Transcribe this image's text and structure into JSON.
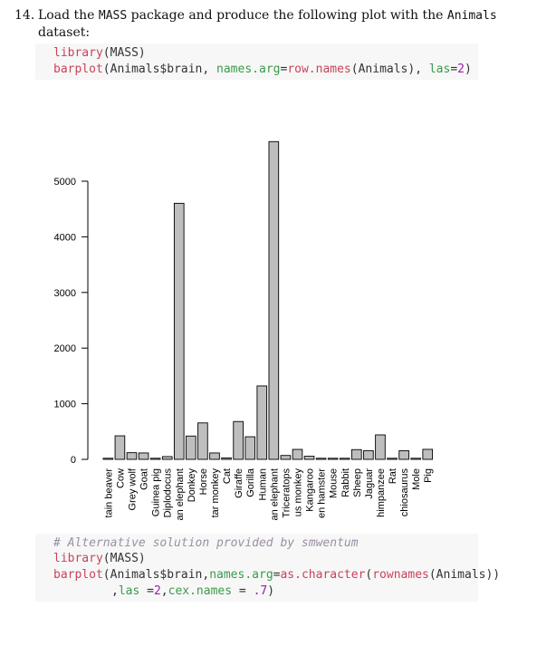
{
  "question": {
    "number": "14.",
    "text_pre": "Load the ",
    "text_mass": "MASS",
    "text_mid": " package and produce the following plot with the ",
    "text_animals": "Animals",
    "text_line2": "dataset:"
  },
  "code_block_1": {
    "line1": {
      "fn": "library",
      "rest": "(MASS)"
    },
    "line2": {
      "fn": "barplot",
      "p1": "(Animals$brain, ",
      "arg1": "names.arg",
      "eq1": "=",
      "fn2": "row.names",
      "p2": "(Animals), ",
      "arg2": "las",
      "eq2": "=",
      "num": "2",
      "close": ")"
    }
  },
  "code_block_2": {
    "comment": "# Alternative solution provided by smwentum",
    "line1": {
      "fn": "library",
      "rest": "(MASS)"
    },
    "line2": {
      "fn": "barplot",
      "p1": "(Animals$brain,",
      "arg1": "names.arg",
      "eq1": "=",
      "fn2": "as.character",
      "p2": "(",
      "fn3": "rownames",
      "p3": "(Animals))"
    },
    "line3": {
      "lead": ",",
      "arg1": "las",
      "eq1": " =",
      "num1": "2",
      "comma": ",",
      "arg2": "cex.names",
      "eq2": " = ",
      "num2": ".7",
      "close": ")"
    }
  },
  "chart_data": {
    "type": "bar",
    "categories": [
      "tain beaver",
      "Cow",
      "Grey wolf",
      "Goat",
      "Guinea pig",
      "Diplodocus",
      "an elephant",
      "Donkey",
      "Horse",
      "tar monkey",
      "Cat",
      "Giraffe",
      "Gorilla",
      "Human",
      "an elephant",
      "Triceratops",
      "us monkey",
      "Kangaroo",
      "en hamster",
      "Mouse",
      "Rabbit",
      "Sheep",
      "Jaguar",
      "himpanzee",
      "Rat",
      "chiosaurus",
      "Mole",
      "Pig"
    ],
    "values": [
      13,
      423,
      120,
      115,
      6,
      50,
      4603,
      419,
      655,
      115,
      26,
      680,
      406,
      1320,
      5712,
      70,
      179,
      56,
      1,
      0.4,
      12,
      175,
      157,
      440,
      2,
      155,
      3,
      180
    ],
    "y_ticks": [
      "0",
      "1000",
      "2000",
      "3000",
      "4000",
      "5000"
    ],
    "ylim": [
      0,
      5712
    ],
    "bar_fill": "#bebebe",
    "bar_stroke": "#000000"
  }
}
